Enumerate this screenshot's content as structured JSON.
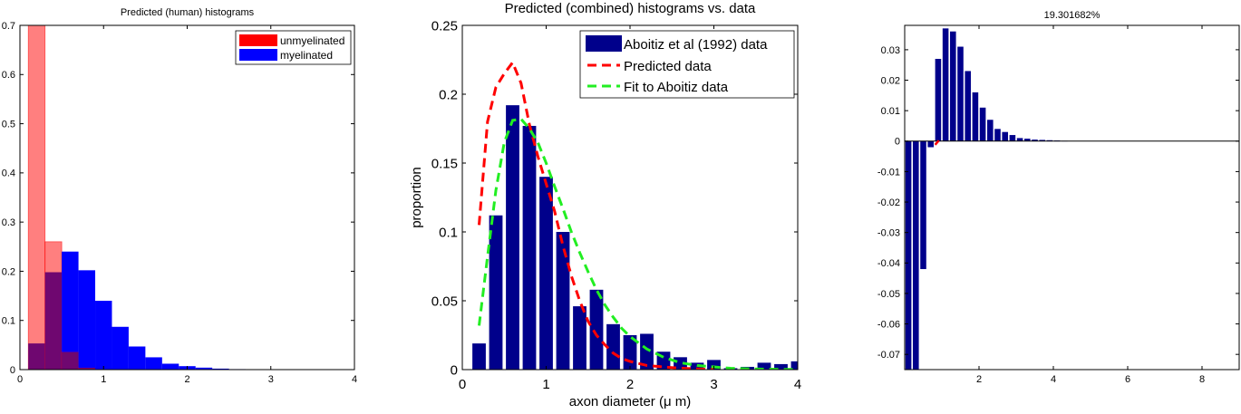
{
  "colors": {
    "unmyelinated": "#ff0000",
    "myelinated": "#0000ff",
    "overlap": "#6f0770",
    "data_bars": "#00008b",
    "predicted_line": "#ff0000",
    "fit_line": "#22ee22",
    "axes": "#000000"
  },
  "chart_data": [
    {
      "type": "bar",
      "title": "Predicted (human) histograms",
      "xlabel": "",
      "ylabel": "",
      "xlim": [
        0,
        4
      ],
      "ylim": [
        0,
        0.7
      ],
      "xticks": [
        "0",
        "1",
        "2",
        "3",
        "4"
      ],
      "yticks": [
        "0",
        "0.1",
        "0.2",
        "0.3",
        "0.4",
        "0.5",
        "0.6",
        "0.7"
      ],
      "legend_position": "top-right",
      "bin_edges": [
        0.1,
        0.3,
        0.5,
        0.7,
        0.9,
        1.1,
        1.3,
        1.5,
        1.7,
        1.9,
        2.1,
        2.3,
        2.5,
        2.7
      ],
      "series": [
        {
          "name": "unmyelinated",
          "values": [
            0.72,
            0.26,
            0.035,
            0.003,
            0,
            0,
            0,
            0,
            0,
            0,
            0,
            0,
            0
          ]
        },
        {
          "name": "myelinated",
          "values": [
            0.053,
            0.198,
            0.24,
            0.202,
            0.14,
            0.087,
            0.047,
            0.025,
            0.012,
            0.007,
            0.004,
            0.002,
            0.001
          ]
        }
      ]
    },
    {
      "type": "bar",
      "title": "Predicted (combined) histograms vs. data",
      "xlabel": "axon diameter (μ m)",
      "ylabel": "proportion",
      "xlim": [
        0,
        4
      ],
      "ylim": [
        0,
        0.25
      ],
      "xticks": [
        "0",
        "1",
        "2",
        "3",
        "4"
      ],
      "yticks": [
        "0",
        "0.05",
        "0.1",
        "0.15",
        "0.2",
        "0.25"
      ],
      "legend_position": "top-right",
      "bars": {
        "name": "Aboitiz et al (1992) data",
        "x": [
          0.2,
          0.4,
          0.6,
          0.8,
          1.0,
          1.2,
          1.4,
          1.6,
          1.8,
          2.0,
          2.2,
          2.4,
          2.6,
          2.8,
          3.0,
          3.2,
          3.4,
          3.6,
          3.8,
          4.0
        ],
        "values": [
          0.019,
          0.112,
          0.192,
          0.177,
          0.14,
          0.1,
          0.046,
          0.058,
          0.033,
          0.025,
          0.026,
          0.013,
          0.009,
          0.005,
          0.007,
          0.001,
          0.002,
          0.005,
          0.004,
          0.006
        ]
      },
      "lines": [
        {
          "name": "Predicted data",
          "x": [
            0.2,
            0.3,
            0.4,
            0.5,
            0.6,
            0.7,
            0.8,
            0.9,
            1.0,
            1.1,
            1.2,
            1.3,
            1.4,
            1.5,
            1.6,
            1.7,
            1.8,
            1.9,
            2.0,
            2.2,
            2.4,
            2.6,
            2.8,
            3.0
          ],
          "y": [
            0.105,
            0.18,
            0.205,
            0.215,
            0.223,
            0.208,
            0.178,
            0.155,
            0.135,
            0.115,
            0.09,
            0.068,
            0.05,
            0.035,
            0.025,
            0.018,
            0.012,
            0.008,
            0.006,
            0.003,
            0.002,
            0.001,
            0.0005,
            0.0002
          ]
        },
        {
          "name": "Fit to Aboitiz data",
          "x": [
            0.2,
            0.3,
            0.4,
            0.5,
            0.6,
            0.7,
            0.8,
            0.9,
            1.0,
            1.1,
            1.2,
            1.3,
            1.4,
            1.5,
            1.6,
            1.7,
            1.8,
            1.9,
            2.0,
            2.2,
            2.4,
            2.6,
            2.8,
            3.0,
            3.2,
            3.4,
            3.6,
            3.8,
            4.0
          ],
          "y": [
            0.032,
            0.082,
            0.13,
            0.165,
            0.181,
            0.182,
            0.175,
            0.165,
            0.15,
            0.133,
            0.117,
            0.1,
            0.085,
            0.071,
            0.058,
            0.047,
            0.038,
            0.03,
            0.024,
            0.015,
            0.009,
            0.005,
            0.003,
            0.002,
            0.001,
            0.0006,
            0.0003,
            0.0002,
            0.0001
          ]
        }
      ]
    },
    {
      "type": "bar",
      "title": "19.301682%",
      "xlabel": "",
      "ylabel": "",
      "xlim": [
        0,
        9
      ],
      "ylim": [
        -0.075,
        0.038
      ],
      "xticks": [
        "2",
        "4",
        "6",
        "8"
      ],
      "yticks": [
        "-0.07",
        "-0.06",
        "-0.05",
        "-0.04",
        "-0.03",
        "-0.02",
        "-0.01",
        "0",
        "0.01",
        "0.02",
        "0.03"
      ],
      "x": [
        0.1,
        0.3,
        0.5,
        0.7,
        0.9,
        1.1,
        1.3,
        1.5,
        1.7,
        1.9,
        2.1,
        2.3,
        2.5,
        2.7,
        2.9,
        3.1,
        3.3,
        3.5,
        3.7,
        3.9,
        4.1,
        4.3
      ],
      "values": [
        -0.075,
        -0.075,
        -0.042,
        -0.002,
        0.027,
        0.037,
        0.036,
        0.031,
        0.023,
        0.016,
        0.011,
        0.007,
        0.004,
        0.003,
        0.002,
        0.001,
        0.0008,
        0.0005,
        0.0004,
        0.0003,
        0.0002,
        0.0001
      ],
      "marker": {
        "x": [
          0.82,
          0.92
        ],
        "y": [
          -0.0012,
          0.0002
        ]
      }
    }
  ]
}
